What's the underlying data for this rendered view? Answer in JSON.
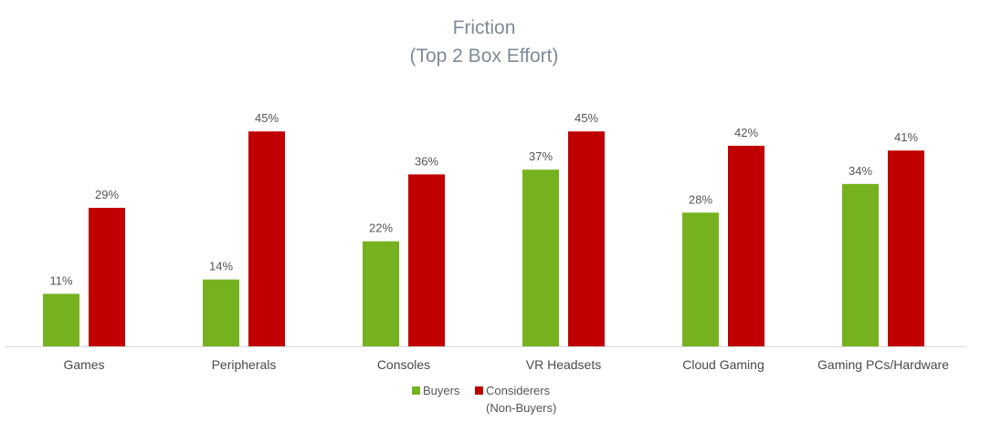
{
  "chart_data": {
    "type": "bar",
    "title": "Friction",
    "subtitle": "(Top 2 Box Effort)",
    "categories": [
      "Games",
      "Peripherals",
      "Consoles",
      "VR Headsets",
      "Cloud Gaming",
      "Gaming PCs/Hardware"
    ],
    "series": [
      {
        "name": "Buyers",
        "color": "#76b21f",
        "values": [
          11,
          14,
          22,
          37,
          28,
          34
        ],
        "labels": [
          "11%",
          "14%",
          "22%",
          "37%",
          "28%",
          "34%"
        ]
      },
      {
        "name": "Considerers (Non-Buyers)",
        "name_lines": [
          "Considerers",
          "(Non-Buyers)"
        ],
        "color": "#c00000",
        "values": [
          29,
          45,
          36,
          45,
          42,
          41
        ],
        "labels": [
          "29%",
          "45%",
          "36%",
          "45%",
          "42%",
          "41%"
        ]
      }
    ],
    "ylim": [
      0,
      50
    ],
    "grid": false,
    "legend": "bottom",
    "axis_color": "#d9d9d9"
  }
}
